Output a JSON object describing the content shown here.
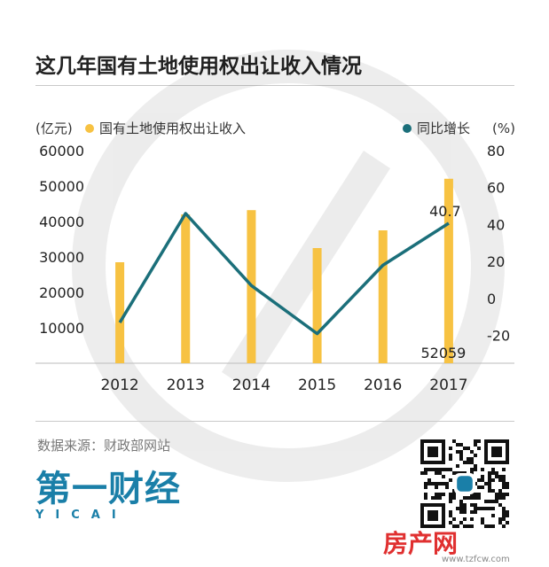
{
  "title": "这几年国有土地使用权出让收入情况",
  "source": "数据来源：财政部网站",
  "logo": {
    "main": "第一财经",
    "sub": "YICAI"
  },
  "watermark": {
    "text": "房产网",
    "url": "www.tzfcw.com"
  },
  "chart_data": {
    "type": "bar+line",
    "categories": [
      "2012",
      "2013",
      "2014",
      "2015",
      "2016",
      "2017"
    ],
    "left_axis": {
      "unit": "(亿元)",
      "range": [
        0,
        60000
      ],
      "ticks": [
        10000,
        20000,
        30000,
        40000,
        50000,
        60000
      ]
    },
    "right_axis": {
      "unit": "(%)",
      "range": [
        -35,
        80
      ],
      "ticks": [
        -20,
        0,
        20,
        40,
        60,
        80
      ]
    },
    "series": [
      {
        "name": "国有土地使用权出让收入",
        "type": "bar",
        "axis": "left",
        "color": "#f7c242",
        "values": [
          28500,
          42000,
          43200,
          32500,
          37500,
          52059
        ]
      },
      {
        "name": "同比增长",
        "type": "line",
        "axis": "right",
        "color": "#1b6f7a",
        "values": [
          -13,
          46,
          7,
          -19,
          18,
          40.7
        ]
      }
    ],
    "annotations": [
      {
        "text": "40.7",
        "series": "同比增长",
        "index": 5
      },
      {
        "text": "52059",
        "series": "国有土地使用权出让收入",
        "index": 5
      }
    ],
    "legend": "top"
  }
}
